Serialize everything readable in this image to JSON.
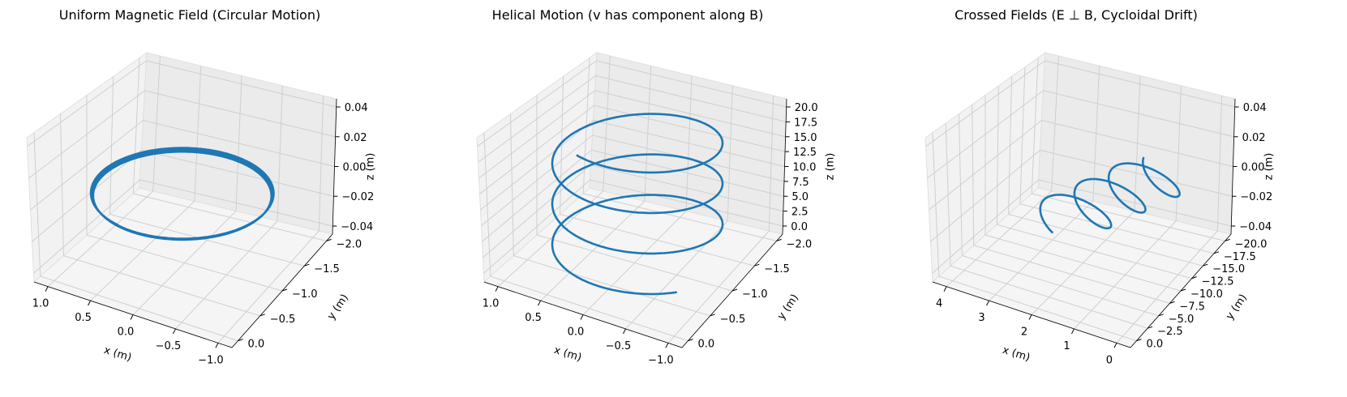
{
  "chart_data": [
    {
      "type": "line",
      "projection": "3d",
      "title": "Uniform Magnetic Field (Circular Motion)",
      "xlabel": "x (m)",
      "ylabel": "y (m)",
      "zlabel": "z (m)",
      "xlim": [
        -1.1,
        1.1
      ],
      "ylim": [
        -2.1,
        0.1
      ],
      "zlim": [
        -0.05,
        0.05
      ],
      "xticks": [
        "1.0",
        "0.5",
        "0.0",
        "−0.5",
        "−1.0"
      ],
      "yticks": [
        "0.0",
        "−0.5",
        "−1.0",
        "−1.5",
        "−2.0"
      ],
      "zticks": [
        "0.04",
        "0.02",
        "0.00",
        "−0.02",
        "−0.04"
      ],
      "grid": true,
      "series": [
        {
          "color": "#1f77b4",
          "description_values": {
            "x_center": 0.0,
            "y_center": -1.0,
            "radius": 1.0,
            "turns": 3.7,
            "z": 0.0
          }
        }
      ]
    },
    {
      "type": "line",
      "projection": "3d",
      "title": "Helical Motion (v has component along B)",
      "xlabel": "x (m)",
      "ylabel": "y (m)",
      "zlabel": "z (m)",
      "xlim": [
        -1.1,
        1.1
      ],
      "ylim": [
        -2.1,
        0.1
      ],
      "zlim": [
        0,
        20
      ],
      "xticks": [
        "1.0",
        "0.5",
        "0.0",
        "−0.5",
        "−1.0"
      ],
      "yticks": [
        "0.0",
        "−0.5",
        "−1.0",
        "−1.5",
        "−2.0"
      ],
      "zticks": [
        "20.0",
        "17.5",
        "15.0",
        "12.5",
        "10.0",
        "7.5",
        "5.0",
        "2.5",
        "0.0"
      ],
      "grid": true,
      "series": [
        {
          "color": "#1f77b4",
          "description_values": {
            "x_center": 0.0,
            "y_center": -1.0,
            "radius": 1.0,
            "turns": 3.2,
            "z_start": 0.0,
            "z_end": 19.0
          }
        }
      ]
    },
    {
      "type": "line",
      "projection": "3d",
      "title": "Crossed Fields (E ⊥ B, Cycloidal Drift)",
      "xlabel": "x (m)",
      "ylabel": "y (m)",
      "zlabel": "z (m)",
      "xlim": [
        -0.2,
        4.6
      ],
      "ylim": [
        -22,
        1
      ],
      "zlim": [
        -0.05,
        0.05
      ],
      "xticks": [
        "4",
        "3",
        "2",
        "1",
        "0"
      ],
      "yticks": [
        "0.0",
        "−2.5",
        "−5.0",
        "−7.5",
        "−10.0",
        "−12.5",
        "−15.0",
        "−17.5",
        "−20.0"
      ],
      "zticks": [
        "0.04",
        "0.02",
        "0.00",
        "−0.02",
        "−0.04"
      ],
      "grid": true,
      "series": [
        {
          "color": "#1f77b4",
          "description_values": {
            "x_amplitude_range": [
              0.0,
              4.2
            ],
            "y_drift_range": [
              -20.0,
              0.0
            ],
            "turns": 3.2,
            "z": 0.0
          }
        }
      ]
    }
  ]
}
